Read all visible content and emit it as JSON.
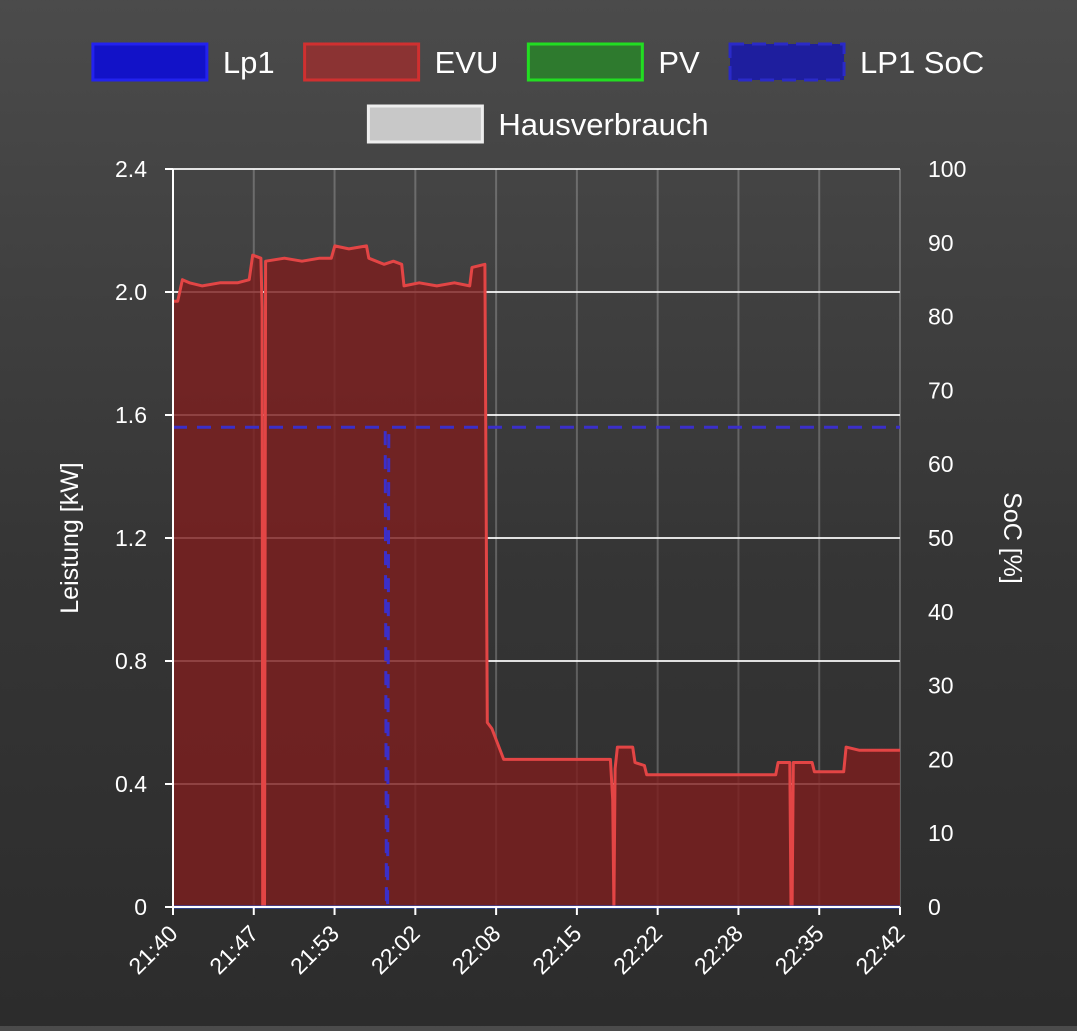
{
  "chart_data": {
    "type": "area",
    "legend": {
      "position": "top",
      "entries": [
        {
          "name": "Lp1",
          "fill": "#1212c8",
          "stroke": "#2222ee",
          "dashed": false
        },
        {
          "name": "EVU",
          "fill": "#8b3333",
          "stroke": "#d03030",
          "dashed": false
        },
        {
          "name": "PV",
          "fill": "#2e7a2e",
          "stroke": "#22dd22",
          "dashed": false
        },
        {
          "name": "LP1 SoC",
          "fill": "#1e1e9e",
          "stroke": "#2a2ac8",
          "dashed": true
        },
        {
          "name": "Hausverbrauch",
          "fill": "#c8c8c8",
          "stroke": "#eeeeee",
          "dashed": false
        }
      ]
    },
    "x_tick_labels": [
      "21:40",
      "21:47",
      "21:53",
      "22:02",
      "22:08",
      "22:15",
      "22:22",
      "22:28",
      "22:35",
      "22:42"
    ],
    "x_range_minutes": [
      0,
      62
    ],
    "y_left": {
      "label": "Leistung [kW]",
      "range": [
        0,
        2.4
      ],
      "ticks": [
        "0",
        "0.4",
        "0.8",
        "1.2",
        "1.6",
        "2.0",
        "2.4"
      ]
    },
    "y_right": {
      "label": "SoC [%]",
      "range": [
        0,
        100
      ],
      "ticks": [
        "0",
        "10",
        "20",
        "30",
        "40",
        "50",
        "60",
        "70",
        "80",
        "90",
        "100"
      ]
    },
    "grid": true,
    "series": [
      {
        "name": "EVU",
        "axis": "left",
        "color": "#e34545",
        "fill": "rgba(125,30,30,0.82)",
        "points": [
          [
            0,
            1.97
          ],
          [
            0.4,
            1.97
          ],
          [
            0.8,
            2.04
          ],
          [
            1.4,
            2.03
          ],
          [
            2.5,
            2.02
          ],
          [
            4.0,
            2.03
          ],
          [
            5.5,
            2.03
          ],
          [
            6.5,
            2.04
          ],
          [
            6.8,
            2.12
          ],
          [
            7.5,
            2.11
          ],
          [
            7.6,
            1.95
          ],
          [
            7.65,
            0.0
          ],
          [
            7.8,
            0.0
          ],
          [
            7.9,
            2.1
          ],
          [
            9.5,
            2.11
          ],
          [
            11.0,
            2.1
          ],
          [
            12.5,
            2.11
          ],
          [
            13.5,
            2.11
          ],
          [
            13.8,
            2.15
          ],
          [
            15.0,
            2.14
          ],
          [
            16.5,
            2.15
          ],
          [
            16.7,
            2.11
          ],
          [
            18.0,
            2.09
          ],
          [
            18.8,
            2.1
          ],
          [
            19.5,
            2.09
          ],
          [
            19.7,
            2.02
          ],
          [
            21.0,
            2.03
          ],
          [
            22.5,
            2.02
          ],
          [
            24.0,
            2.03
          ],
          [
            25.3,
            2.02
          ],
          [
            25.5,
            2.08
          ],
          [
            26.6,
            2.09
          ],
          [
            26.8,
            0.6
          ],
          [
            27.2,
            0.58
          ],
          [
            27.8,
            0.52
          ],
          [
            28.2,
            0.48
          ],
          [
            30.0,
            0.48
          ],
          [
            35.0,
            0.48
          ],
          [
            37.3,
            0.48
          ],
          [
            37.5,
            0.35
          ],
          [
            37.6,
            0.0
          ],
          [
            37.7,
            0.45
          ],
          [
            37.9,
            0.52
          ],
          [
            39.2,
            0.52
          ],
          [
            39.4,
            0.47
          ],
          [
            40.2,
            0.46
          ],
          [
            40.4,
            0.43
          ],
          [
            42.0,
            0.43
          ],
          [
            45.0,
            0.43
          ],
          [
            48.0,
            0.43
          ],
          [
            51.4,
            0.43
          ],
          [
            51.6,
            0.47
          ],
          [
            52.6,
            0.47
          ],
          [
            52.7,
            0.0
          ],
          [
            52.8,
            0.0
          ],
          [
            52.9,
            0.47
          ],
          [
            54.5,
            0.47
          ],
          [
            54.7,
            0.44
          ],
          [
            57.2,
            0.44
          ],
          [
            57.4,
            0.52
          ],
          [
            58.5,
            0.51
          ],
          [
            60.0,
            0.51
          ],
          [
            62.0,
            0.51
          ]
        ]
      },
      {
        "name": "LP1 SoC",
        "axis": "right",
        "color": "#3b2fc9",
        "dashed": true,
        "points": [
          [
            0,
            65
          ],
          [
            18.1,
            65
          ],
          [
            18.2,
            0
          ],
          [
            18.3,
            0
          ],
          [
            18.4,
            65
          ],
          [
            62.0,
            65
          ]
        ]
      },
      {
        "name": "Lp1",
        "axis": "left",
        "color": "#2b4fd8",
        "points": [
          [
            0,
            0
          ],
          [
            62.0,
            0
          ]
        ]
      }
    ]
  }
}
